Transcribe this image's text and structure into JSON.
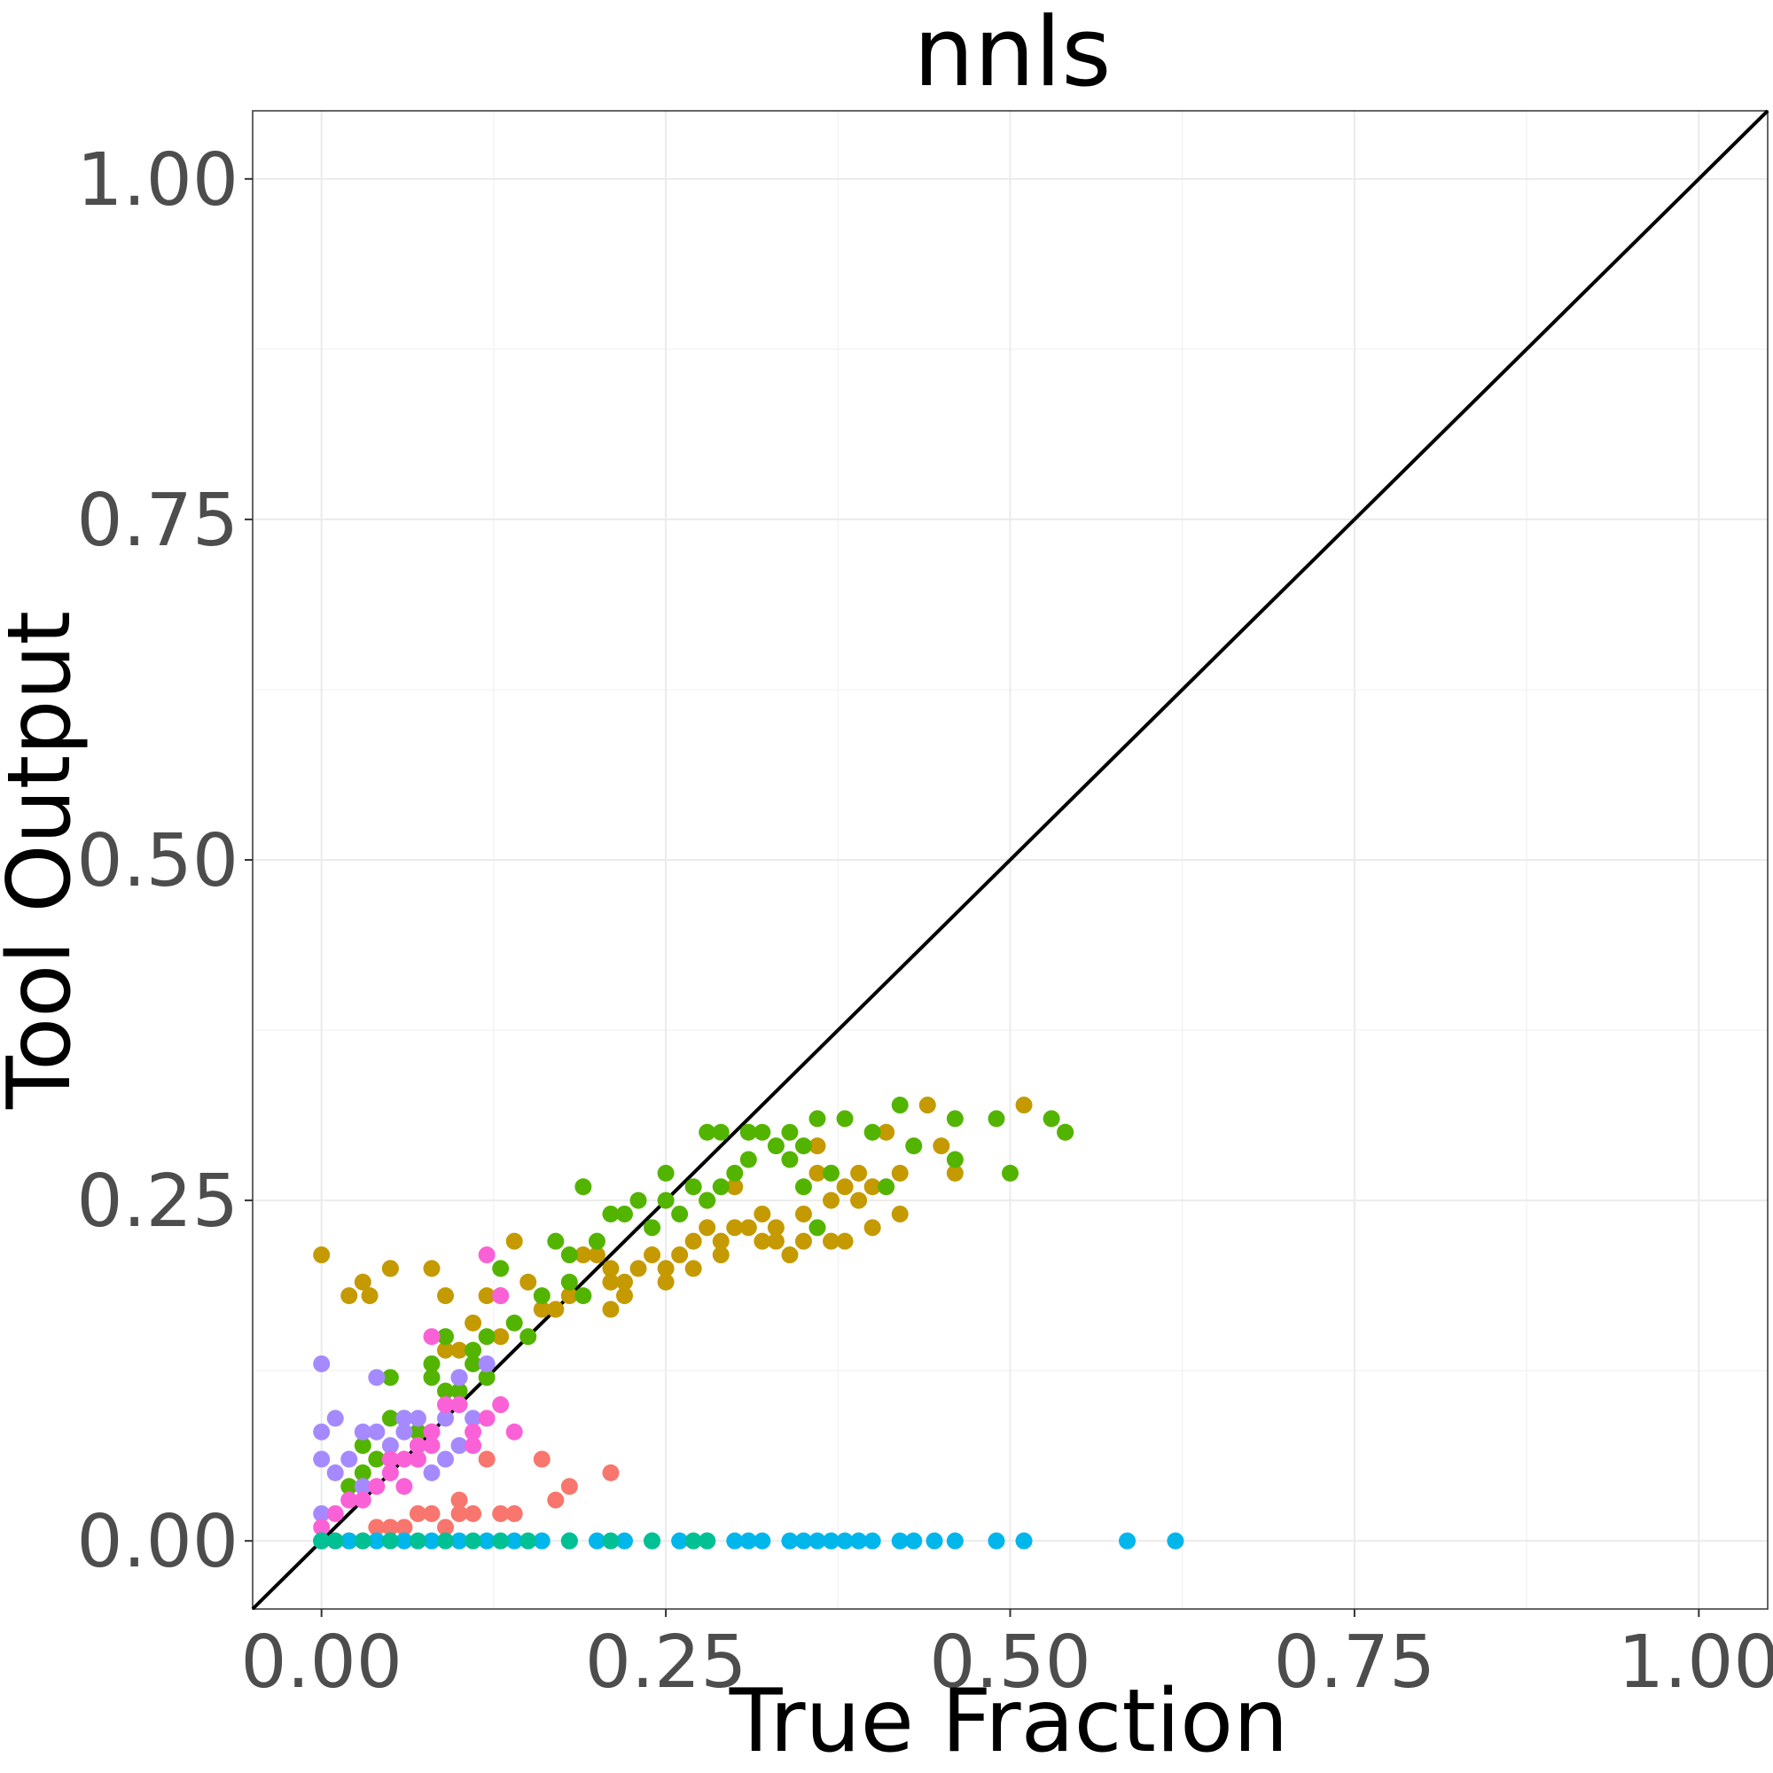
{
  "chart_data": {
    "type": "scatter",
    "title": "nnls",
    "xlabel": "True Fraction",
    "ylabel": "Tool Output",
    "xlim": [
      -0.05,
      1.05
    ],
    "ylim": [
      -0.05,
      1.05
    ],
    "xticks": [
      "0.00",
      "0.25",
      "0.50",
      "0.75",
      "1.00"
    ],
    "yticks": [
      "0.00",
      "0.25",
      "0.50",
      "0.75",
      "1.00"
    ],
    "grid": true,
    "legend": "none",
    "reference_line": {
      "type": "identity",
      "color": "#000000"
    },
    "series": [
      {
        "color": "#C49A00",
        "points": [
          [
            0.0,
            0.21
          ],
          [
            0.02,
            0.18
          ],
          [
            0.03,
            0.19
          ],
          [
            0.035,
            0.18
          ],
          [
            0.05,
            0.2
          ],
          [
            0.05,
            0.2
          ],
          [
            0.08,
            0.2
          ],
          [
            0.09,
            0.14
          ],
          [
            0.09,
            0.18
          ],
          [
            0.1,
            0.14
          ],
          [
            0.11,
            0.16
          ],
          [
            0.12,
            0.18
          ],
          [
            0.13,
            0.15
          ],
          [
            0.14,
            0.22
          ],
          [
            0.15,
            0.19
          ],
          [
            0.16,
            0.17
          ],
          [
            0.17,
            0.17
          ],
          [
            0.18,
            0.18
          ],
          [
            0.19,
            0.21
          ],
          [
            0.2,
            0.21
          ],
          [
            0.21,
            0.2
          ],
          [
            0.21,
            0.19
          ],
          [
            0.21,
            0.17
          ],
          [
            0.22,
            0.18
          ],
          [
            0.22,
            0.19
          ],
          [
            0.23,
            0.2
          ],
          [
            0.24,
            0.21
          ],
          [
            0.25,
            0.19
          ],
          [
            0.25,
            0.2
          ],
          [
            0.26,
            0.21
          ],
          [
            0.27,
            0.22
          ],
          [
            0.27,
            0.2
          ],
          [
            0.28,
            0.23
          ],
          [
            0.28,
            0.25
          ],
          [
            0.29,
            0.22
          ],
          [
            0.29,
            0.21
          ],
          [
            0.3,
            0.26
          ],
          [
            0.3,
            0.23
          ],
          [
            0.31,
            0.23
          ],
          [
            0.32,
            0.24
          ],
          [
            0.32,
            0.22
          ],
          [
            0.33,
            0.23
          ],
          [
            0.33,
            0.22
          ],
          [
            0.34,
            0.21
          ],
          [
            0.35,
            0.22
          ],
          [
            0.35,
            0.24
          ],
          [
            0.36,
            0.27
          ],
          [
            0.36,
            0.29
          ],
          [
            0.37,
            0.22
          ],
          [
            0.37,
            0.25
          ],
          [
            0.38,
            0.22
          ],
          [
            0.38,
            0.26
          ],
          [
            0.39,
            0.27
          ],
          [
            0.39,
            0.25
          ],
          [
            0.4,
            0.23
          ],
          [
            0.4,
            0.26
          ],
          [
            0.41,
            0.3
          ],
          [
            0.42,
            0.27
          ],
          [
            0.42,
            0.24
          ],
          [
            0.44,
            0.32
          ],
          [
            0.45,
            0.29
          ],
          [
            0.46,
            0.27
          ],
          [
            0.51,
            0.32
          ],
          [
            0.54,
            0.3
          ]
        ]
      },
      {
        "color": "#53B400",
        "points": [
          [
            0.02,
            0.04
          ],
          [
            0.03,
            0.05
          ],
          [
            0.03,
            0.07
          ],
          [
            0.04,
            0.06
          ],
          [
            0.05,
            0.09
          ],
          [
            0.05,
            0.12
          ],
          [
            0.06,
            0.09
          ],
          [
            0.07,
            0.08
          ],
          [
            0.08,
            0.13
          ],
          [
            0.08,
            0.12
          ],
          [
            0.09,
            0.11
          ],
          [
            0.09,
            0.15
          ],
          [
            0.1,
            0.11
          ],
          [
            0.1,
            0.12
          ],
          [
            0.11,
            0.14
          ],
          [
            0.11,
            0.13
          ],
          [
            0.12,
            0.15
          ],
          [
            0.12,
            0.12
          ],
          [
            0.13,
            0.18
          ],
          [
            0.13,
            0.2
          ],
          [
            0.14,
            0.16
          ],
          [
            0.15,
            0.15
          ],
          [
            0.16,
            0.18
          ],
          [
            0.17,
            0.22
          ],
          [
            0.18,
            0.19
          ],
          [
            0.18,
            0.21
          ],
          [
            0.19,
            0.26
          ],
          [
            0.19,
            0.18
          ],
          [
            0.2,
            0.22
          ],
          [
            0.21,
            0.24
          ],
          [
            0.22,
            0.24
          ],
          [
            0.23,
            0.25
          ],
          [
            0.24,
            0.23
          ],
          [
            0.25,
            0.25
          ],
          [
            0.25,
            0.27
          ],
          [
            0.26,
            0.24
          ],
          [
            0.27,
            0.26
          ],
          [
            0.28,
            0.3
          ],
          [
            0.28,
            0.25
          ],
          [
            0.29,
            0.3
          ],
          [
            0.29,
            0.26
          ],
          [
            0.3,
            0.27
          ],
          [
            0.31,
            0.3
          ],
          [
            0.31,
            0.28
          ],
          [
            0.32,
            0.3
          ],
          [
            0.33,
            0.29
          ],
          [
            0.34,
            0.28
          ],
          [
            0.34,
            0.3
          ],
          [
            0.35,
            0.29
          ],
          [
            0.35,
            0.26
          ],
          [
            0.36,
            0.31
          ],
          [
            0.36,
            0.23
          ],
          [
            0.37,
            0.27
          ],
          [
            0.38,
            0.31
          ],
          [
            0.4,
            0.3
          ],
          [
            0.41,
            0.26
          ],
          [
            0.42,
            0.32
          ],
          [
            0.43,
            0.29
          ],
          [
            0.46,
            0.28
          ],
          [
            0.46,
            0.31
          ],
          [
            0.49,
            0.31
          ],
          [
            0.5,
            0.27
          ],
          [
            0.53,
            0.31
          ],
          [
            0.54,
            0.3
          ]
        ]
      },
      {
        "color": "#F8766D",
        "points": [
          [
            0.0,
            0.0
          ],
          [
            0.01,
            0.0
          ],
          [
            0.02,
            0.0
          ],
          [
            0.03,
            0.0
          ],
          [
            0.04,
            0.01
          ],
          [
            0.05,
            0.01
          ],
          [
            0.06,
            0.01
          ],
          [
            0.07,
            0.02
          ],
          [
            0.08,
            0.02
          ],
          [
            0.09,
            0.01
          ],
          [
            0.1,
            0.03
          ],
          [
            0.1,
            0.02
          ],
          [
            0.11,
            0.02
          ],
          [
            0.12,
            0.06
          ],
          [
            0.13,
            0.02
          ],
          [
            0.14,
            0.02
          ],
          [
            0.16,
            0.06
          ],
          [
            0.17,
            0.03
          ],
          [
            0.18,
            0.04
          ],
          [
            0.21,
            0.05
          ]
        ]
      },
      {
        "color": "#A58AFF",
        "points": [
          [
            0.0,
            0.02
          ],
          [
            0.0,
            0.06
          ],
          [
            0.0,
            0.08
          ],
          [
            0.0,
            0.13
          ],
          [
            0.01,
            0.09
          ],
          [
            0.01,
            0.05
          ],
          [
            0.02,
            0.03
          ],
          [
            0.02,
            0.06
          ],
          [
            0.03,
            0.04
          ],
          [
            0.03,
            0.08
          ],
          [
            0.04,
            0.08
          ],
          [
            0.04,
            0.12
          ],
          [
            0.05,
            0.07
          ],
          [
            0.05,
            0.05
          ],
          [
            0.06,
            0.08
          ],
          [
            0.06,
            0.09
          ],
          [
            0.07,
            0.06
          ],
          [
            0.07,
            0.09
          ],
          [
            0.08,
            0.05
          ],
          [
            0.08,
            0.08
          ],
          [
            0.09,
            0.09
          ],
          [
            0.09,
            0.06
          ],
          [
            0.1,
            0.07
          ],
          [
            0.1,
            0.12
          ],
          [
            0.11,
            0.09
          ],
          [
            0.12,
            0.13
          ]
        ]
      },
      {
        "color": "#FB61D7",
        "points": [
          [
            0.0,
            0.01
          ],
          [
            0.01,
            0.02
          ],
          [
            0.02,
            0.03
          ],
          [
            0.03,
            0.03
          ],
          [
            0.04,
            0.04
          ],
          [
            0.05,
            0.05
          ],
          [
            0.05,
            0.06
          ],
          [
            0.06,
            0.06
          ],
          [
            0.06,
            0.04
          ],
          [
            0.07,
            0.06
          ],
          [
            0.07,
            0.07
          ],
          [
            0.08,
            0.07
          ],
          [
            0.08,
            0.08
          ],
          [
            0.08,
            0.15
          ],
          [
            0.09,
            0.1
          ],
          [
            0.1,
            0.1
          ],
          [
            0.11,
            0.08
          ],
          [
            0.11,
            0.07
          ],
          [
            0.12,
            0.09
          ],
          [
            0.12,
            0.21
          ],
          [
            0.13,
            0.18
          ],
          [
            0.13,
            0.1
          ],
          [
            0.14,
            0.08
          ]
        ]
      },
      {
        "color": "#00B6EB",
        "points": [
          [
            0.0,
            0.0
          ],
          [
            0.02,
            0.0
          ],
          [
            0.04,
            0.0
          ],
          [
            0.06,
            0.0
          ],
          [
            0.08,
            0.0
          ],
          [
            0.1,
            0.0
          ],
          [
            0.12,
            0.0
          ],
          [
            0.14,
            0.0
          ],
          [
            0.16,
            0.0
          ],
          [
            0.18,
            0.0
          ],
          [
            0.2,
            0.0
          ],
          [
            0.22,
            0.0
          ],
          [
            0.24,
            0.0
          ],
          [
            0.26,
            0.0
          ],
          [
            0.28,
            0.0
          ],
          [
            0.3,
            0.0
          ],
          [
            0.31,
            0.0
          ],
          [
            0.32,
            0.0
          ],
          [
            0.34,
            0.0
          ],
          [
            0.35,
            0.0
          ],
          [
            0.36,
            0.0
          ],
          [
            0.37,
            0.0
          ],
          [
            0.38,
            0.0
          ],
          [
            0.39,
            0.0
          ],
          [
            0.4,
            0.0
          ],
          [
            0.42,
            0.0
          ],
          [
            0.43,
            0.0
          ],
          [
            0.445,
            0.0
          ],
          [
            0.46,
            0.0
          ],
          [
            0.49,
            0.0
          ],
          [
            0.51,
            0.0
          ],
          [
            0.585,
            0.0
          ],
          [
            0.62,
            0.0
          ]
        ]
      },
      {
        "color": "#00C094",
        "points": [
          [
            0.0,
            0.0
          ],
          [
            0.01,
            0.0
          ],
          [
            0.03,
            0.0
          ],
          [
            0.05,
            0.0
          ],
          [
            0.07,
            0.0
          ],
          [
            0.09,
            0.0
          ],
          [
            0.11,
            0.0
          ],
          [
            0.13,
            0.0
          ],
          [
            0.15,
            0.0
          ],
          [
            0.18,
            0.0
          ],
          [
            0.21,
            0.0
          ],
          [
            0.24,
            0.0
          ],
          [
            0.27,
            0.0
          ],
          [
            0.28,
            0.0
          ]
        ]
      }
    ]
  }
}
